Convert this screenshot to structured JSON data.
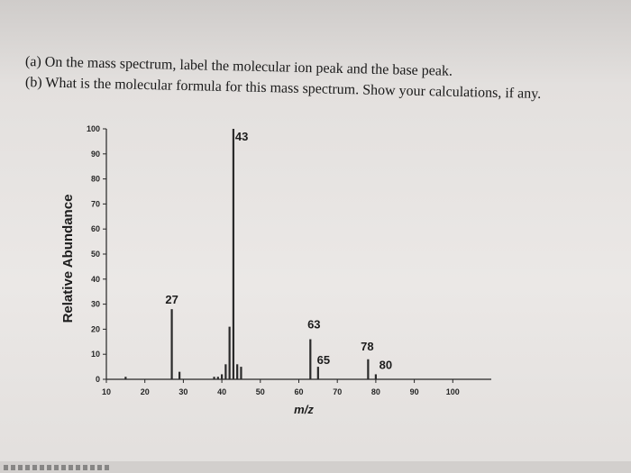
{
  "questions": {
    "a": "(a) On the mass spectrum, label the molecular ion peak and the base peak.",
    "b": "(b) What is the molecular formula for this mass spectrum. Show your calculations, if any."
  },
  "chart_data": {
    "type": "bar",
    "title": "",
    "xlabel": "m/z",
    "ylabel": "Relative Abundance",
    "xlim": [
      10,
      110
    ],
    "ylim": [
      0,
      100
    ],
    "x_ticks": [
      10,
      20,
      30,
      40,
      50,
      60,
      70,
      80,
      90,
      100
    ],
    "y_ticks": [
      0,
      10,
      20,
      30,
      40,
      50,
      60,
      70,
      80,
      90,
      100
    ],
    "grid": false,
    "peaks": [
      {
        "mz": 15,
        "abundance": 1
      },
      {
        "mz": 27,
        "abundance": 28,
        "label": "27"
      },
      {
        "mz": 29,
        "abundance": 3
      },
      {
        "mz": 38,
        "abundance": 1
      },
      {
        "mz": 39,
        "abundance": 1
      },
      {
        "mz": 40,
        "abundance": 2
      },
      {
        "mz": 41,
        "abundance": 6
      },
      {
        "mz": 42,
        "abundance": 21
      },
      {
        "mz": 43,
        "abundance": 100,
        "label": "43"
      },
      {
        "mz": 44,
        "abundance": 6
      },
      {
        "mz": 45,
        "abundance": 5
      },
      {
        "mz": 63,
        "abundance": 16,
        "label": "63"
      },
      {
        "mz": 65,
        "abundance": 5,
        "label": "65"
      },
      {
        "mz": 78,
        "abundance": 8,
        "label": "78"
      },
      {
        "mz": 80,
        "abundance": 2,
        "label": "80"
      }
    ]
  }
}
